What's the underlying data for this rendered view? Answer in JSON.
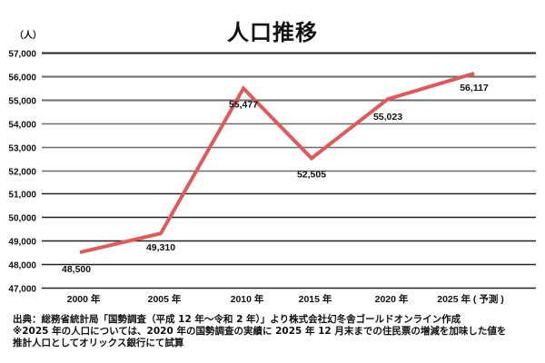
{
  "chart_data": {
    "type": "line",
    "title": "人口推移",
    "ylabel": "（人）",
    "xlabel": "",
    "categories": [
      "2000 年",
      "2005 年",
      "2010 年",
      "2015 年",
      "2020 年",
      "2025 年 ( 予測 )"
    ],
    "series": [
      {
        "name": "人口",
        "values": [
          48500,
          49310,
          55477,
          52505,
          55023,
          56117
        ],
        "color": "#e05a5a"
      }
    ],
    "data_labels": [
      "48,500",
      "49,310",
      "55,477",
      "52,505",
      "55,023",
      "56,117"
    ],
    "ylim": [
      47000,
      57000
    ],
    "yticks": [
      47000,
      48000,
      49000,
      50000,
      51000,
      52000,
      53000,
      54000,
      55000,
      56000,
      57000
    ],
    "ytick_labels": [
      "47,000",
      "48,000",
      "49,000",
      "50,000",
      "51,000",
      "52,000",
      "53,000",
      "54,000",
      "55,000",
      "56,000",
      "57,000"
    ],
    "grid": true,
    "legend": null
  },
  "header": {
    "title": "人口推移",
    "unit": "（人）"
  },
  "footer": {
    "source": "出典：総務省統計局「国勢調査（平成 12 年〜令和 2 年）」より株式会社幻冬舎ゴールドオンライン作成",
    "note_line1": "※2025 年の人口については、2020 年の国勢調査の実績に 2025 年 12 月末までの住民票の増減を加味した値を",
    "note_line2": "推計人口としてオリックス銀行にて試算"
  }
}
